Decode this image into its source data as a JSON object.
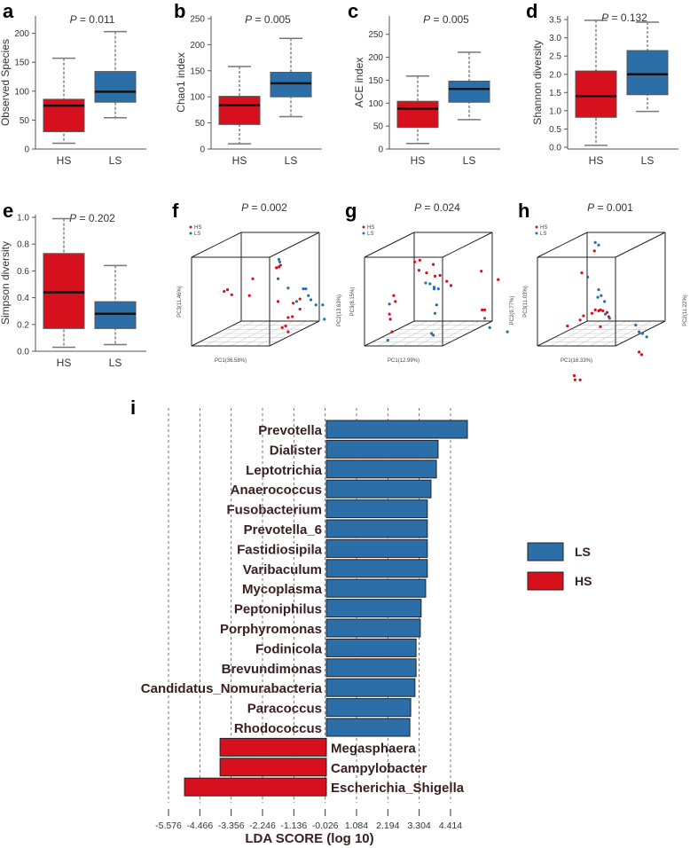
{
  "colors": {
    "HS": "#d7101e",
    "LS": "#2b6ea8",
    "text": "#3a2020"
  },
  "chart_data": [
    {
      "panel": "a",
      "type": "boxplot",
      "title": "P = 0.011",
      "ylabel": "Observed Species",
      "ylim": [
        0,
        230
      ],
      "yticks": [
        "0",
        "50",
        "100",
        "150",
        "200"
      ],
      "ytick_values": [
        0,
        50,
        100,
        150,
        200
      ],
      "categories": [
        "HS",
        "LS"
      ],
      "boxes": [
        {
          "group": "HS",
          "min": 10,
          "q1": 30,
          "median": 75,
          "q3": 86,
          "max": 157
        },
        {
          "group": "LS",
          "min": 54,
          "q1": 81,
          "median": 99,
          "q3": 134,
          "max": 203
        }
      ]
    },
    {
      "panel": "b",
      "type": "boxplot",
      "title": "P = 0.005",
      "ylabel": "Chao1 index",
      "ylim": [
        0,
        255
      ],
      "yticks": [
        "0",
        "50",
        "100",
        "150",
        "200",
        "250"
      ],
      "ytick_values": [
        0,
        50,
        100,
        150,
        200,
        250
      ],
      "categories": [
        "HS",
        "LS"
      ],
      "boxes": [
        {
          "group": "HS",
          "min": 10,
          "q1": 47,
          "median": 84,
          "q3": 101,
          "max": 158
        },
        {
          "group": "LS",
          "min": 62,
          "q1": 100,
          "median": 126,
          "q3": 147,
          "max": 212
        }
      ]
    },
    {
      "panel": "c",
      "type": "boxplot",
      "title": "P = 0.005",
      "ylabel": "ACE index",
      "ylim": [
        0,
        290
      ],
      "yticks": [
        "0",
        "50",
        "100",
        "150",
        "200",
        "250"
      ],
      "ytick_values": [
        0,
        50,
        100,
        150,
        200,
        250
      ],
      "categories": [
        "HS",
        "LS"
      ],
      "boxes": [
        {
          "group": "HS",
          "min": 12,
          "q1": 47,
          "median": 88,
          "q3": 104,
          "max": 159
        },
        {
          "group": "LS",
          "min": 64,
          "q1": 102,
          "median": 131,
          "q3": 148,
          "max": 211
        }
      ]
    },
    {
      "panel": "d",
      "type": "boxplot",
      "title": "P = 0.132",
      "ylabel": "Shannon diversity",
      "ylim": [
        -0.05,
        3.6
      ],
      "yticks": [
        "0.0",
        "0.5",
        "1.0",
        "1.5",
        "2.0",
        "2.5",
        "3.0",
        "3.5"
      ],
      "ytick_values": [
        0,
        0.5,
        1,
        1.5,
        2,
        2.5,
        3,
        3.5
      ],
      "categories": [
        "HS",
        "LS"
      ],
      "boxes": [
        {
          "group": "HS",
          "min": 0.05,
          "q1": 0.82,
          "median": 1.4,
          "q3": 2.09,
          "max": 3.48
        },
        {
          "group": "LS",
          "min": 0.98,
          "q1": 1.44,
          "median": 2.0,
          "q3": 2.65,
          "max": 3.43
        }
      ]
    },
    {
      "panel": "e",
      "type": "boxplot",
      "title": "P = 0.202",
      "ylabel": "Simpson diversity",
      "ylim": [
        0,
        1.02
      ],
      "yticks": [
        "0.0",
        "0.2",
        "0.4",
        "0.6",
        "0.8",
        "1.0"
      ],
      "ytick_values": [
        0,
        0.2,
        0.4,
        0.6,
        0.8,
        1.0
      ],
      "categories": [
        "HS",
        "LS"
      ],
      "boxes": [
        {
          "group": "HS",
          "min": 0.03,
          "q1": 0.17,
          "median": 0.44,
          "q3": 0.73,
          "max": 0.99
        },
        {
          "group": "LS",
          "min": 0.05,
          "q1": 0.17,
          "median": 0.28,
          "q3": 0.37,
          "max": 0.64
        }
      ]
    },
    {
      "panel": "f",
      "type": "scatter3d",
      "title": "P = 0.002",
      "xlabel": "PC1(36.58%)",
      "ylabel": "PC2(13.63%)",
      "zlabel": "PC3(11.46%)",
      "legend": [
        "HS",
        "LS"
      ],
      "legend_position": "top-left"
    },
    {
      "panel": "g",
      "type": "scatter3d",
      "title": "P = 0.024",
      "xlabel": "PC1(12.99%)",
      "ylabel": "PC2(9.77%)",
      "zlabel": "PC3(8.15%)",
      "legend": [
        "HS",
        "LS"
      ],
      "legend_position": "top-left"
    },
    {
      "panel": "h",
      "type": "scatter3d",
      "title": "P = 0.001",
      "xlabel": "PC1(16.33%)",
      "ylabel": "PC2(11.22%)",
      "zlabel": "PC3(11.03%)",
      "legend": [
        "HS",
        "LS"
      ],
      "legend_position": "top-left"
    },
    {
      "panel": "i",
      "type": "bar",
      "orientation": "horizontal",
      "xlabel": "LDA SCORE (log 10)",
      "xticks": [
        "-5.576",
        "-4.466",
        "-3.356",
        "-2.246",
        "-1.136",
        "-0.026",
        "1.084",
        "2.194",
        "3.304",
        "4.414"
      ],
      "legend": [
        {
          "label": "LS"
        },
        {
          "label": "HS"
        }
      ],
      "legend_position": "right",
      "bars": [
        {
          "name": "Prevotella",
          "value": 5.0,
          "group": "LS"
        },
        {
          "name": "Dialister",
          "value": 3.96,
          "group": "LS"
        },
        {
          "name": "Leptotrichia",
          "value": 3.9,
          "group": "LS"
        },
        {
          "name": "Anaerococcus",
          "value": 3.71,
          "group": "LS"
        },
        {
          "name": "Fusobacterium",
          "value": 3.58,
          "group": "LS"
        },
        {
          "name": "Prevotella_6",
          "value": 3.58,
          "group": "LS"
        },
        {
          "name": "Fastidiosipila",
          "value": 3.58,
          "group": "LS"
        },
        {
          "name": "Varibaculum",
          "value": 3.58,
          "group": "LS"
        },
        {
          "name": "Mycoplasma",
          "value": 3.52,
          "group": "LS"
        },
        {
          "name": "Peptoniphilus",
          "value": 3.36,
          "group": "LS"
        },
        {
          "name": "Porphyromonas",
          "value": 3.33,
          "group": "LS"
        },
        {
          "name": "Fodinicola",
          "value": 3.18,
          "group": "LS"
        },
        {
          "name": "Brevundimonas",
          "value": 3.18,
          "group": "LS"
        },
        {
          "name": "Candidatus_Nomurabacteria",
          "value": 3.14,
          "group": "LS"
        },
        {
          "name": "Paracoccus",
          "value": 2.99,
          "group": "LS"
        },
        {
          "name": "Rhodococcus",
          "value": 2.96,
          "group": "LS"
        },
        {
          "name": "Megasphaera",
          "value": -3.77,
          "group": "HS"
        },
        {
          "name": "Campylobacter",
          "value": -3.77,
          "group": "HS"
        },
        {
          "name": "Escherichia_Shigella",
          "value": -5.03,
          "group": "HS"
        }
      ]
    }
  ]
}
